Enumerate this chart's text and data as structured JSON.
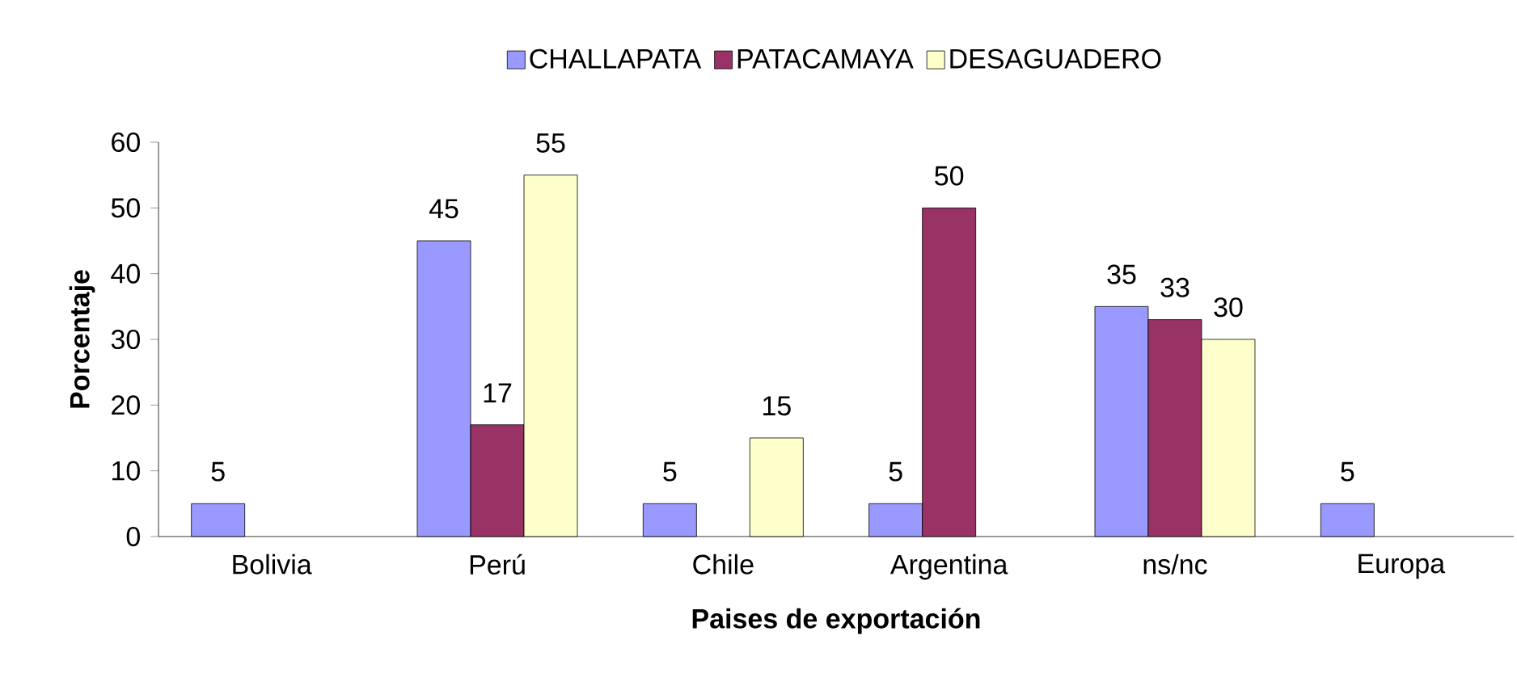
{
  "chart_data": {
    "type": "bar",
    "xlabel": "Paises de exportación",
    "ylabel": "Porcentaje",
    "categories": [
      "Bolivia",
      "Perú",
      "Chile",
      "Argentina",
      "ns/nc",
      "Europa"
    ],
    "series": [
      {
        "name": "CHALLAPATA",
        "color": "#9999ff",
        "values": [
          5,
          45,
          5,
          5,
          35,
          5
        ]
      },
      {
        "name": "PATACAMAYA",
        "color": "#993366",
        "values": [
          null,
          17,
          null,
          50,
          33,
          null
        ]
      },
      {
        "name": "DESAGUADERO",
        "color": "#ffffcc",
        "values": [
          null,
          55,
          15,
          null,
          30,
          null
        ]
      }
    ],
    "ylim": [
      0,
      60
    ],
    "yticks": [
      0,
      10,
      20,
      30,
      40,
      50,
      60
    ],
    "data_labels": true,
    "grid": false,
    "legend": "top"
  }
}
